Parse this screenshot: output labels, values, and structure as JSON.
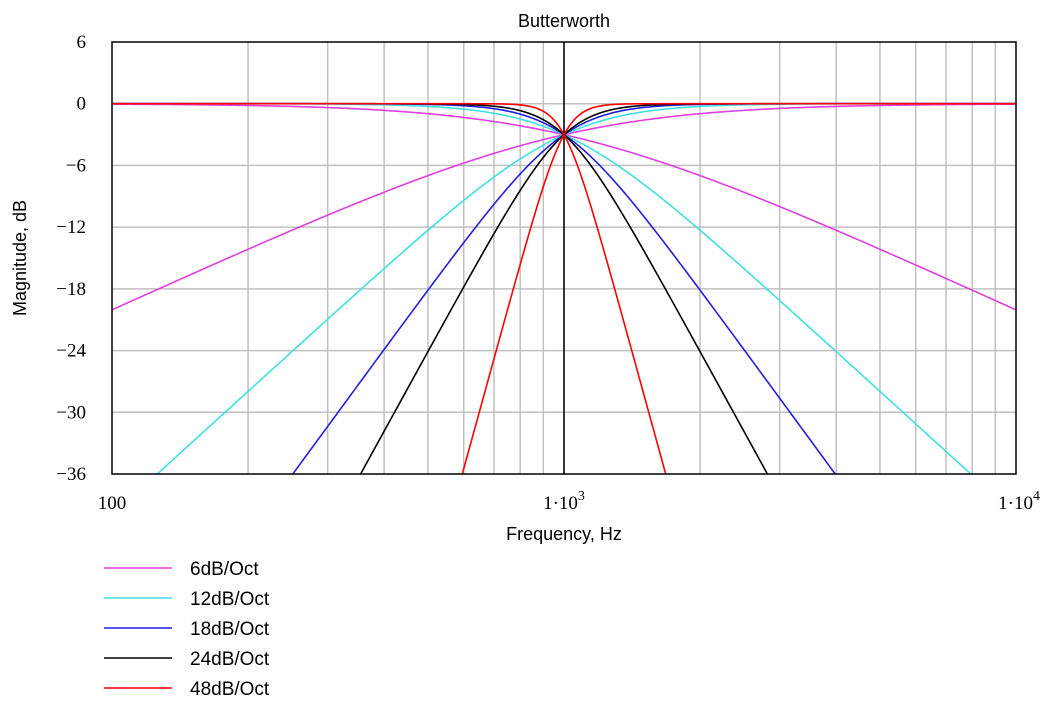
{
  "chart_data": {
    "type": "line",
    "title": "Butterworth",
    "xlabel": "Frequency, Hz",
    "ylabel": "Magnitude, dB",
    "x_scale": "log",
    "xlim": [
      100,
      10000
    ],
    "ylim": [
      -36,
      6
    ],
    "x_ticks": [
      {
        "value": 100,
        "label": "100"
      },
      {
        "value": 1000,
        "base": "1·10",
        "exp": "3"
      },
      {
        "value": 10000,
        "base": "1·10",
        "exp": "4"
      }
    ],
    "y_ticks": [
      {
        "value": 6,
        "label": "6"
      },
      {
        "value": 0,
        "label": "0"
      },
      {
        "value": -6,
        "label": "−6"
      },
      {
        "value": -12,
        "label": "−12"
      },
      {
        "value": -18,
        "label": "−18"
      },
      {
        "value": -24,
        "label": "−24"
      },
      {
        "value": -30,
        "label": "−30"
      },
      {
        "value": -36,
        "label": "−36"
      }
    ],
    "grid": true,
    "marker_x": 1000,
    "legend_position": "bottom-left",
    "series": [
      {
        "name": "6dB/Oct",
        "color": "#e040e0",
        "order": 1,
        "fc": 1000
      },
      {
        "name": "12dB/Oct",
        "color": "#40e0e0",
        "order": 2,
        "fc": 1000
      },
      {
        "name": "18dB/Oct",
        "color": "#2020e0",
        "order": 3,
        "fc": 1000
      },
      {
        "name": "24dB/Oct",
        "color": "#000000",
        "order": 4,
        "fc": 1000
      },
      {
        "name": "48dB/Oct",
        "color": "#ff0000",
        "order": 8,
        "fc": 1000
      }
    ]
  }
}
